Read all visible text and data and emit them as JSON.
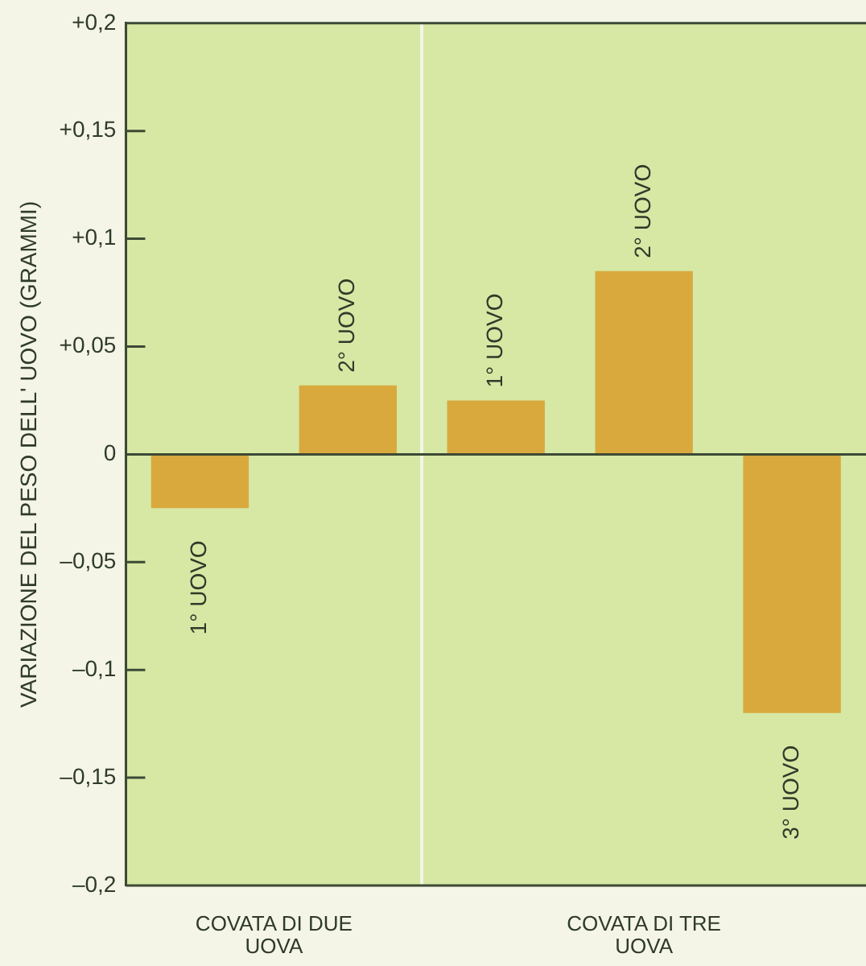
{
  "chart_data": {
    "type": "bar",
    "ylabel": "VARIAZIONE DEL PESO DELL' UOVO (GRAMMI)",
    "categories": [
      "1° UOVO",
      "2° UOVO",
      "1° UOVO",
      "2° UOVO",
      "3° UOVO"
    ],
    "values": [
      -0.025,
      0.032,
      0.025,
      0.085,
      -0.12
    ],
    "color": "#d9a93e",
    "ylim": [
      -0.2,
      0.2
    ],
    "yticks": [
      {
        "value": 0.2,
        "label": "+0,2"
      },
      {
        "value": 0.15,
        "label": "+0,15"
      },
      {
        "value": 0.1,
        "label": "+0,1"
      },
      {
        "value": 0.05,
        "label": "+0,05"
      },
      0,
      {
        "value": -0.05,
        "label": "–0,05"
      },
      {
        "value": -0.1,
        "label": "–0,1"
      },
      {
        "value": -0.15,
        "label": "–0,15"
      },
      {
        "value": -0.2,
        "label": "–0,2"
      }
    ],
    "annotations": [
      "COVATA DI DUE\nUOVA",
      "COVATA DI TRE\nUOVA"
    ],
    "ref_lines": [
      {
        "axis": "y",
        "value": 0,
        "color": "#3d4a35"
      }
    ],
    "grid": false,
    "legend": false
  }
}
